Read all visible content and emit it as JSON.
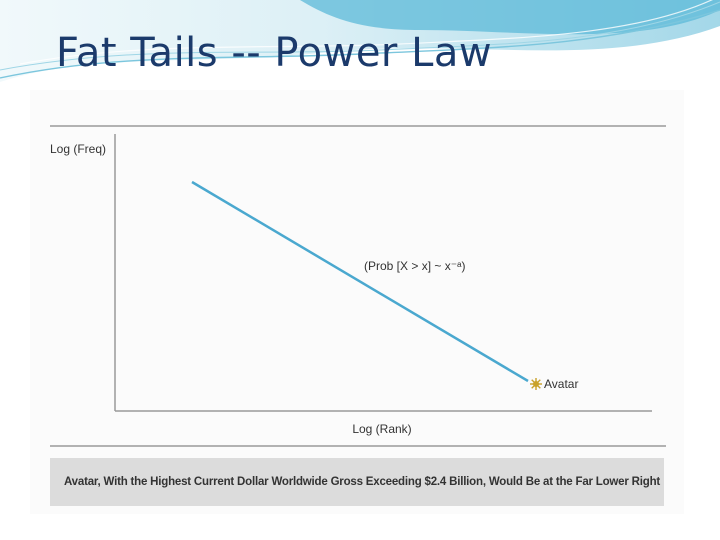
{
  "slide": {
    "title": "Fat Tails  -- Power Law",
    "caption": "Avatar, With the Highest Current Dollar Worldwide Gross Exceeding $2.4 Billion, Would Be at the Far Lower Right"
  },
  "chart_data": {
    "type": "line",
    "title": "",
    "xlabel": "Log (Rank)",
    "ylabel": "Log (Freq)",
    "annotation": "(Prob [X > x] ~ x^-a)",
    "annotation_display": "(Prob [X > x] ~ x⁻ᵃ)",
    "series": [
      {
        "values": []
      }
    ],
    "highlight_point": {
      "label": "Avatar",
      "position": "line end (far lower right)"
    },
    "grid": false,
    "line_color": "#4aa8cf",
    "axis_color": "#999999",
    "marker_color": "#c9a22a"
  },
  "colors": {
    "title": "#1b3a6b",
    "caption_background": "#dcdcdc"
  }
}
